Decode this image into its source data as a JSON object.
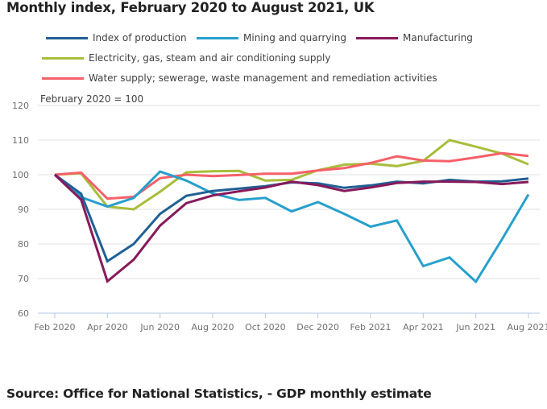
{
  "title": "Monthly index, February 2020 to August 2021, UK",
  "source": "Source: Office for National Statistics, - GDP monthly estimate",
  "chart_data": {
    "type": "line",
    "title": "Monthly index, February 2020 to August 2021, UK",
    "subtitle": "February 2020 = 100",
    "xlabel": "",
    "ylabel": "February 2020 = 100",
    "ylim": [
      60,
      120
    ],
    "yticks": [
      60,
      70,
      80,
      90,
      100,
      110,
      120
    ],
    "grid": true,
    "legend_position": "top",
    "x": [
      "Feb 2020",
      "Mar 2020",
      "Apr 2020",
      "May 2020",
      "Jun 2020",
      "Jul 2020",
      "Aug 2020",
      "Sep 2020",
      "Oct 2020",
      "Nov 2020",
      "Dec 2020",
      "Jan 2021",
      "Feb 2021",
      "Mar 2021",
      "Apr 2021",
      "May 2021",
      "Jun 2021",
      "Jul 2021",
      "Aug 2021"
    ],
    "xtick_labels": [
      "Feb 2020",
      "Apr 2020",
      "Jun 2020",
      "Aug 2020",
      "Oct 2020",
      "Dec 2020",
      "Feb 2021",
      "Apr 2021",
      "Jun 2021",
      "Aug 2021"
    ],
    "series": [
      {
        "name": "Index of production",
        "color": "#206095",
        "values": [
          100,
          94.5,
          75.0,
          80.0,
          88.7,
          93.9,
          95.3,
          96.0,
          96.7,
          97.8,
          97.5,
          96.2,
          96.9,
          98.0,
          97.5,
          98.5,
          98.0,
          98.1,
          98.9
        ]
      },
      {
        "name": "Mining and quarrying",
        "color": "#27a0cc",
        "values": [
          100,
          93.5,
          90.8,
          93.3,
          100.9,
          98.3,
          94.6,
          92.7,
          93.3,
          89.4,
          92.1,
          88.7,
          85.0,
          86.8,
          73.6,
          76.1,
          69.1,
          81.4,
          94.3
        ]
      },
      {
        "name": "Manufacturing",
        "color": "#871a5b",
        "values": [
          100,
          92.8,
          69.2,
          75.5,
          85.3,
          91.8,
          94.0,
          95.2,
          96.3,
          98.0,
          97.0,
          95.3,
          96.3,
          97.6,
          98.0,
          98.0,
          97.9,
          97.3,
          97.9
        ]
      },
      {
        "name": "Electricity, gas, steam and air conditioning supply",
        "color": "#a8bd3a",
        "values": [
          100,
          100.4,
          90.8,
          90.0,
          95.1,
          100.7,
          101.0,
          101.1,
          98.3,
          98.5,
          101.3,
          102.9,
          103.2,
          102.5,
          104.0,
          110.0,
          108.1,
          106.1,
          103.0
        ]
      },
      {
        "name": "Water supply; sewerage, waste management and remediation activities",
        "color": "#f66068",
        "values": [
          100,
          100.6,
          93.1,
          93.6,
          99.0,
          100.0,
          99.6,
          99.9,
          100.3,
          100.3,
          101.2,
          101.9,
          103.4,
          105.3,
          104.1,
          103.9,
          105.0,
          106.2,
          105.4
        ]
      }
    ]
  },
  "colors": {
    "gridline": "#e0e0e0",
    "axis": "#b3c6e0",
    "tick_text": "#707071"
  }
}
